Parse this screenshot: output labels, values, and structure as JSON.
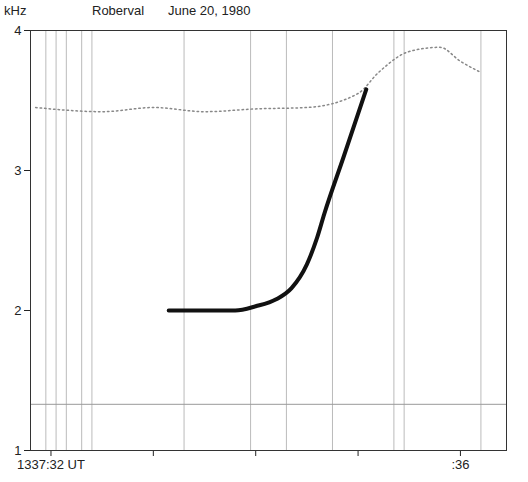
{
  "chart_data": {
    "type": "line",
    "title": "Roberval",
    "subtitle": "June 20, 1980",
    "y_label": "kHz",
    "xlim": [
      31.8,
      36.45
    ],
    "xticks": [
      {
        "value": 32,
        "label": "1337:32 UT"
      },
      {
        "value": 33,
        "label": null
      },
      {
        "value": 34,
        "label": null
      },
      {
        "value": 35,
        "label": null
      },
      {
        "value": 36,
        "label": ":36"
      }
    ],
    "ylim": [
      1,
      4
    ],
    "yticks": [
      1,
      2,
      3,
      4
    ],
    "grid": false,
    "series": [
      {
        "type": "rule",
        "color": "#bbbbbb",
        "x": [
          31.95,
          32.05,
          32.15,
          32.3,
          32.4,
          33.3,
          33.95,
          34.3,
          34.75,
          35.35,
          35.45,
          36.2
        ]
      },
      {
        "type": "line",
        "line_style": "solid",
        "color": "#999999",
        "x": [
          31.8,
          36.45
        ],
        "values": [
          1.33,
          1.33
        ]
      },
      {
        "type": "line",
        "line_style": "dotted",
        "color": "#888888",
        "x": [
          31.85,
          32.5,
          33.0,
          33.5,
          34.0,
          34.5,
          35.0,
          35.2,
          35.5,
          35.8,
          36.0,
          36.2
        ],
        "values": [
          3.45,
          3.42,
          3.45,
          3.42,
          3.44,
          3.45,
          3.55,
          3.7,
          3.85,
          3.88,
          3.78,
          3.7
        ]
      },
      {
        "type": "line",
        "line_style": "solid",
        "color": "#111111",
        "x": [
          33.15,
          33.4,
          33.6,
          33.8,
          34.0,
          34.2,
          34.35,
          34.5,
          34.6,
          34.67,
          34.86,
          35.08
        ],
        "values": [
          2.0,
          2.0,
          2.0,
          2.0,
          2.03,
          2.08,
          2.16,
          2.33,
          2.52,
          2.69,
          3.1,
          3.58
        ]
      }
    ]
  }
}
